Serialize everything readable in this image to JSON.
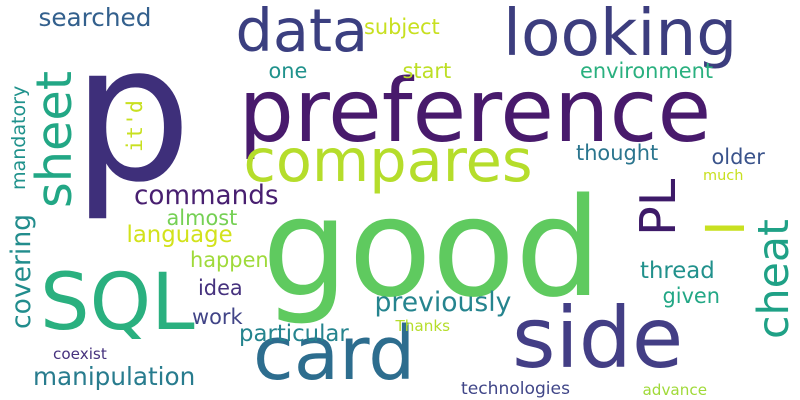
{
  "words": [
    {
      "text": "p",
      "color": "#3e2f7a"
    },
    {
      "text": "preference",
      "color": "#481a6c"
    },
    {
      "text": "good",
      "color": "#5fca5f"
    },
    {
      "text": "looking",
      "color": "#3c3d7e"
    },
    {
      "text": "data",
      "color": "#3b3f80"
    },
    {
      "text": "compares",
      "color": "#b5dd2b"
    },
    {
      "text": "side",
      "color": "#433e85"
    },
    {
      "text": "card",
      "color": "#2d6d8e"
    },
    {
      "text": "SQL",
      "color": "#2ab07f"
    },
    {
      "text": "sheet",
      "color": "#22a785"
    },
    {
      "text": "cheat",
      "color": "#1fa186"
    },
    {
      "text": "PL",
      "color": "#3d1a68"
    },
    {
      "text": "I",
      "color": "#c8e020"
    },
    {
      "text": "searched",
      "color": "#33608d"
    },
    {
      "text": "subject",
      "color": "#c8e020"
    },
    {
      "text": "one",
      "color": "#20928c"
    },
    {
      "text": "start",
      "color": "#bddf26"
    },
    {
      "text": "environment",
      "color": "#2ab07f"
    },
    {
      "text": "mandatory",
      "color": "#20928c"
    },
    {
      "text": "it'd",
      "color": "#c8e020"
    },
    {
      "text": "thought",
      "color": "#2b758e"
    },
    {
      "text": "older",
      "color": "#3a538b"
    },
    {
      "text": "much",
      "color": "#c8e020"
    },
    {
      "text": "commands",
      "color": "#481f70"
    },
    {
      "text": "almost",
      "color": "#75d054"
    },
    {
      "text": "language",
      "color": "#d2e21b"
    },
    {
      "text": "covering",
      "color": "#228d8d"
    },
    {
      "text": "happen",
      "color": "#9fda3a"
    },
    {
      "text": "thread",
      "color": "#21918c"
    },
    {
      "text": "idea",
      "color": "#46327e"
    },
    {
      "text": "given",
      "color": "#22a785"
    },
    {
      "text": "previously",
      "color": "#25848e"
    },
    {
      "text": "work",
      "color": "#414487"
    },
    {
      "text": "particular",
      "color": "#25848e"
    },
    {
      "text": "Thanks",
      "color": "#b5dd2b"
    },
    {
      "text": "manipulation",
      "color": "#287c8e"
    },
    {
      "text": "coexist",
      "color": "#46327e"
    },
    {
      "text": "technologies",
      "color": "#404688"
    },
    {
      "text": "advance",
      "color": "#a0da39"
    }
  ]
}
